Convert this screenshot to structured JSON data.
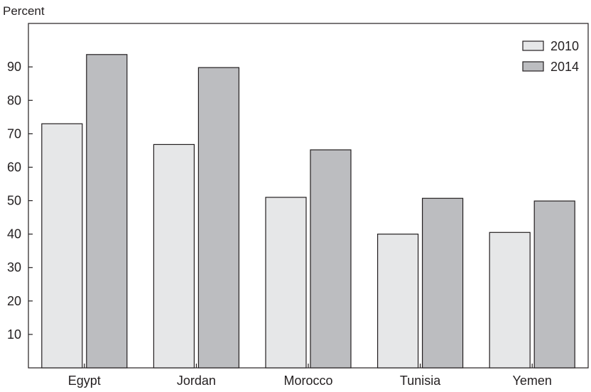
{
  "chart_data": {
    "type": "bar",
    "ylabel": "Percent",
    "xlabel": "",
    "categories": [
      "Egypt",
      "Jordan",
      "Morocco",
      "Tunisia",
      "Yemen"
    ],
    "series": [
      {
        "name": "2010",
        "values": [
          73,
          66.8,
          51,
          40,
          40.5
        ],
        "color": "#e6e7e8"
      },
      {
        "name": "2014",
        "values": [
          93.7,
          89.8,
          65.2,
          50.7,
          49.9
        ],
        "color": "#bcbdc0"
      }
    ],
    "ylim": [
      0,
      103
    ],
    "yticks": [
      10,
      20,
      30,
      40,
      50,
      60,
      70,
      80,
      90
    ],
    "grid": false,
    "legend_position": "top-right"
  }
}
